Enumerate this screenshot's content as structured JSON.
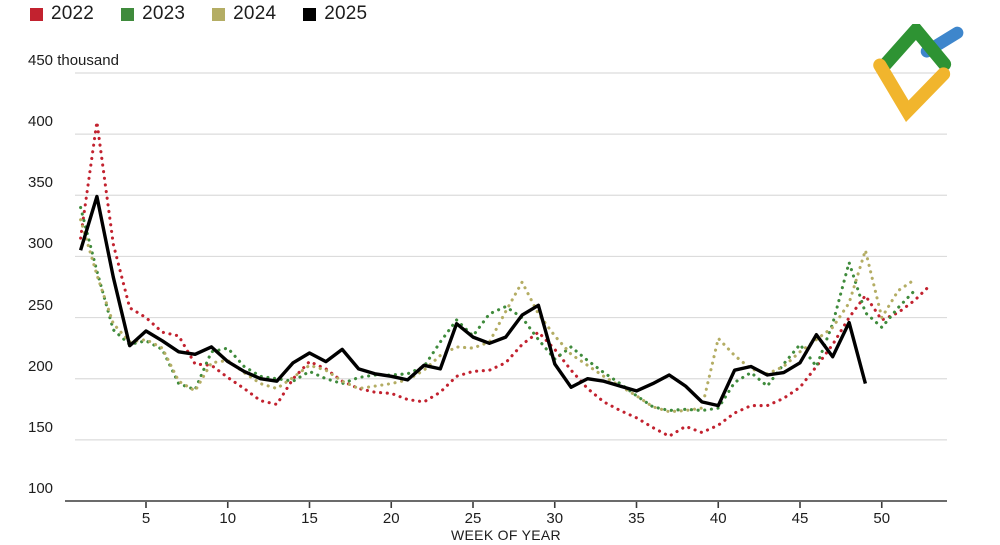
{
  "legend": {
    "items": [
      {
        "label": "2022",
        "color": "#c2222f"
      },
      {
        "label": "2023",
        "color": "#3f8b3c"
      },
      {
        "label": "2024",
        "color": "#b4ad64"
      },
      {
        "label": "2025",
        "color": "#000000"
      }
    ]
  },
  "logo": {
    "name": "litefinance-logo",
    "colors": {
      "green": "#2e9333",
      "blue": "#3e86cc",
      "yellow": "#f1b52d"
    }
  },
  "chart_data": {
    "type": "line",
    "title": "",
    "xlabel": "WEEK OF YEAR",
    "ylabel": "",
    "y_top_label": "450 thousand",
    "y_ticks": [
      450,
      400,
      350,
      300,
      250,
      200,
      150,
      100
    ],
    "x_ticks": [
      5,
      10,
      15,
      20,
      25,
      30,
      35,
      40,
      45,
      50
    ],
    "ylim": [
      100,
      450
    ],
    "xlim": [
      1,
      53
    ],
    "grid": true,
    "legend_position": "top-left",
    "x_unit": "week of year",
    "y_unit": "thousand",
    "series": [
      {
        "name": "2022",
        "color": "#c2222f",
        "style": "dotted",
        "start_week": 1,
        "values": [
          315,
          410,
          310,
          258,
          250,
          238,
          235,
          212,
          211,
          201,
          192,
          182,
          179,
          200,
          214,
          208,
          198,
          192,
          189,
          188,
          183,
          181,
          189,
          202,
          206,
          207,
          213,
          228,
          238,
          224,
          207,
          192,
          181,
          174,
          168,
          160,
          153,
          161,
          156,
          162,
          172,
          178,
          178,
          184,
          193,
          210,
          228,
          250,
          268,
          248,
          254,
          264,
          277
        ]
      },
      {
        "name": "2023",
        "color": "#3f8b3c",
        "style": "dotted",
        "start_week": 1,
        "values": [
          340,
          288,
          240,
          228,
          231,
          224,
          196,
          191,
          222,
          225,
          210,
          202,
          200,
          198,
          206,
          200,
          196,
          201,
          203,
          203,
          204,
          210,
          230,
          248,
          235,
          253,
          259,
          250,
          232,
          216,
          226,
          215,
          205,
          196,
          186,
          177,
          174,
          175,
          174,
          176,
          197,
          205,
          194,
          212,
          228,
          210,
          245,
          295,
          254,
          242,
          258,
          272
        ]
      },
      {
        "name": "2024",
        "color": "#b4ad64",
        "style": "dotted",
        "start_week": 1,
        "values": [
          330,
          285,
          245,
          230,
          232,
          225,
          198,
          190,
          213,
          215,
          205,
          196,
          192,
          201,
          211,
          207,
          198,
          192,
          194,
          196,
          199,
          207,
          219,
          226,
          225,
          230,
          255,
          279,
          253,
          235,
          220,
          211,
          202,
          194,
          186,
          177,
          173,
          174,
          176,
          233,
          219,
          208,
          204,
          210,
          222,
          232,
          242,
          262,
          305,
          250,
          272,
          281
        ]
      },
      {
        "name": "2025",
        "color": "#000000",
        "style": "solid",
        "start_week": 1,
        "values": [
          305,
          349,
          283,
          227,
          239,
          231,
          222,
          220,
          226,
          214,
          206,
          200,
          198,
          213,
          221,
          214,
          224,
          208,
          204,
          202,
          199,
          211,
          208,
          245,
          234,
          229,
          234,
          252,
          260,
          212,
          193,
          200,
          198,
          194,
          190,
          196,
          203,
          194,
          181,
          178,
          207,
          210,
          203,
          205,
          213,
          236,
          218,
          246,
          196
        ]
      }
    ]
  }
}
